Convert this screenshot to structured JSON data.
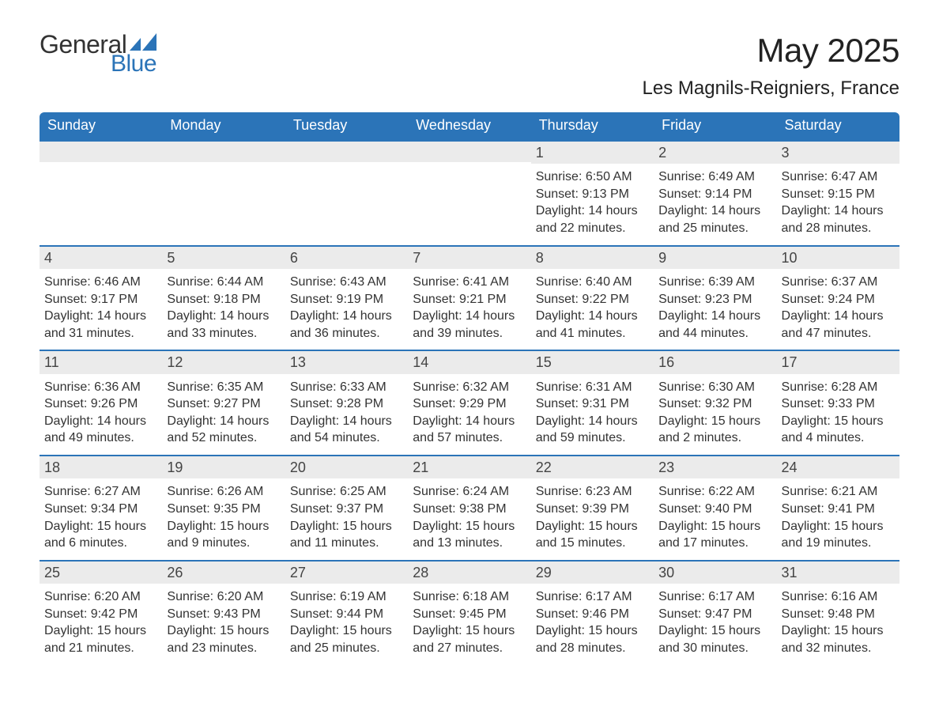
{
  "logo": {
    "part1": "General",
    "part2": "Blue"
  },
  "title": {
    "month": "May 2025",
    "location": "Les Magnils-Reigniers, France"
  },
  "colors": {
    "header_bg": "#2b74b8",
    "header_text": "#ffffff",
    "daynum_bg": "#ebebeb",
    "text": "#333333",
    "divider": "#2b74b8"
  },
  "day_headers": [
    "Sunday",
    "Monday",
    "Tuesday",
    "Wednesday",
    "Thursday",
    "Friday",
    "Saturday"
  ],
  "weeks": [
    [
      {
        "day": "",
        "sunrise": "",
        "sunset": "",
        "daylight": ""
      },
      {
        "day": "",
        "sunrise": "",
        "sunset": "",
        "daylight": ""
      },
      {
        "day": "",
        "sunrise": "",
        "sunset": "",
        "daylight": ""
      },
      {
        "day": "",
        "sunrise": "",
        "sunset": "",
        "daylight": ""
      },
      {
        "day": "1",
        "sunrise": "Sunrise: 6:50 AM",
        "sunset": "Sunset: 9:13 PM",
        "daylight": "Daylight: 14 hours and 22 minutes."
      },
      {
        "day": "2",
        "sunrise": "Sunrise: 6:49 AM",
        "sunset": "Sunset: 9:14 PM",
        "daylight": "Daylight: 14 hours and 25 minutes."
      },
      {
        "day": "3",
        "sunrise": "Sunrise: 6:47 AM",
        "sunset": "Sunset: 9:15 PM",
        "daylight": "Daylight: 14 hours and 28 minutes."
      }
    ],
    [
      {
        "day": "4",
        "sunrise": "Sunrise: 6:46 AM",
        "sunset": "Sunset: 9:17 PM",
        "daylight": "Daylight: 14 hours and 31 minutes."
      },
      {
        "day": "5",
        "sunrise": "Sunrise: 6:44 AM",
        "sunset": "Sunset: 9:18 PM",
        "daylight": "Daylight: 14 hours and 33 minutes."
      },
      {
        "day": "6",
        "sunrise": "Sunrise: 6:43 AM",
        "sunset": "Sunset: 9:19 PM",
        "daylight": "Daylight: 14 hours and 36 minutes."
      },
      {
        "day": "7",
        "sunrise": "Sunrise: 6:41 AM",
        "sunset": "Sunset: 9:21 PM",
        "daylight": "Daylight: 14 hours and 39 minutes."
      },
      {
        "day": "8",
        "sunrise": "Sunrise: 6:40 AM",
        "sunset": "Sunset: 9:22 PM",
        "daylight": "Daylight: 14 hours and 41 minutes."
      },
      {
        "day": "9",
        "sunrise": "Sunrise: 6:39 AM",
        "sunset": "Sunset: 9:23 PM",
        "daylight": "Daylight: 14 hours and 44 minutes."
      },
      {
        "day": "10",
        "sunrise": "Sunrise: 6:37 AM",
        "sunset": "Sunset: 9:24 PM",
        "daylight": "Daylight: 14 hours and 47 minutes."
      }
    ],
    [
      {
        "day": "11",
        "sunrise": "Sunrise: 6:36 AM",
        "sunset": "Sunset: 9:26 PM",
        "daylight": "Daylight: 14 hours and 49 minutes."
      },
      {
        "day": "12",
        "sunrise": "Sunrise: 6:35 AM",
        "sunset": "Sunset: 9:27 PM",
        "daylight": "Daylight: 14 hours and 52 minutes."
      },
      {
        "day": "13",
        "sunrise": "Sunrise: 6:33 AM",
        "sunset": "Sunset: 9:28 PM",
        "daylight": "Daylight: 14 hours and 54 minutes."
      },
      {
        "day": "14",
        "sunrise": "Sunrise: 6:32 AM",
        "sunset": "Sunset: 9:29 PM",
        "daylight": "Daylight: 14 hours and 57 minutes."
      },
      {
        "day": "15",
        "sunrise": "Sunrise: 6:31 AM",
        "sunset": "Sunset: 9:31 PM",
        "daylight": "Daylight: 14 hours and 59 minutes."
      },
      {
        "day": "16",
        "sunrise": "Sunrise: 6:30 AM",
        "sunset": "Sunset: 9:32 PM",
        "daylight": "Daylight: 15 hours and 2 minutes."
      },
      {
        "day": "17",
        "sunrise": "Sunrise: 6:28 AM",
        "sunset": "Sunset: 9:33 PM",
        "daylight": "Daylight: 15 hours and 4 minutes."
      }
    ],
    [
      {
        "day": "18",
        "sunrise": "Sunrise: 6:27 AM",
        "sunset": "Sunset: 9:34 PM",
        "daylight": "Daylight: 15 hours and 6 minutes."
      },
      {
        "day": "19",
        "sunrise": "Sunrise: 6:26 AM",
        "sunset": "Sunset: 9:35 PM",
        "daylight": "Daylight: 15 hours and 9 minutes."
      },
      {
        "day": "20",
        "sunrise": "Sunrise: 6:25 AM",
        "sunset": "Sunset: 9:37 PM",
        "daylight": "Daylight: 15 hours and 11 minutes."
      },
      {
        "day": "21",
        "sunrise": "Sunrise: 6:24 AM",
        "sunset": "Sunset: 9:38 PM",
        "daylight": "Daylight: 15 hours and 13 minutes."
      },
      {
        "day": "22",
        "sunrise": "Sunrise: 6:23 AM",
        "sunset": "Sunset: 9:39 PM",
        "daylight": "Daylight: 15 hours and 15 minutes."
      },
      {
        "day": "23",
        "sunrise": "Sunrise: 6:22 AM",
        "sunset": "Sunset: 9:40 PM",
        "daylight": "Daylight: 15 hours and 17 minutes."
      },
      {
        "day": "24",
        "sunrise": "Sunrise: 6:21 AM",
        "sunset": "Sunset: 9:41 PM",
        "daylight": "Daylight: 15 hours and 19 minutes."
      }
    ],
    [
      {
        "day": "25",
        "sunrise": "Sunrise: 6:20 AM",
        "sunset": "Sunset: 9:42 PM",
        "daylight": "Daylight: 15 hours and 21 minutes."
      },
      {
        "day": "26",
        "sunrise": "Sunrise: 6:20 AM",
        "sunset": "Sunset: 9:43 PM",
        "daylight": "Daylight: 15 hours and 23 minutes."
      },
      {
        "day": "27",
        "sunrise": "Sunrise: 6:19 AM",
        "sunset": "Sunset: 9:44 PM",
        "daylight": "Daylight: 15 hours and 25 minutes."
      },
      {
        "day": "28",
        "sunrise": "Sunrise: 6:18 AM",
        "sunset": "Sunset: 9:45 PM",
        "daylight": "Daylight: 15 hours and 27 minutes."
      },
      {
        "day": "29",
        "sunrise": "Sunrise: 6:17 AM",
        "sunset": "Sunset: 9:46 PM",
        "daylight": "Daylight: 15 hours and 28 minutes."
      },
      {
        "day": "30",
        "sunrise": "Sunrise: 6:17 AM",
        "sunset": "Sunset: 9:47 PM",
        "daylight": "Daylight: 15 hours and 30 minutes."
      },
      {
        "day": "31",
        "sunrise": "Sunrise: 6:16 AM",
        "sunset": "Sunset: 9:48 PM",
        "daylight": "Daylight: 15 hours and 32 minutes."
      }
    ]
  ]
}
